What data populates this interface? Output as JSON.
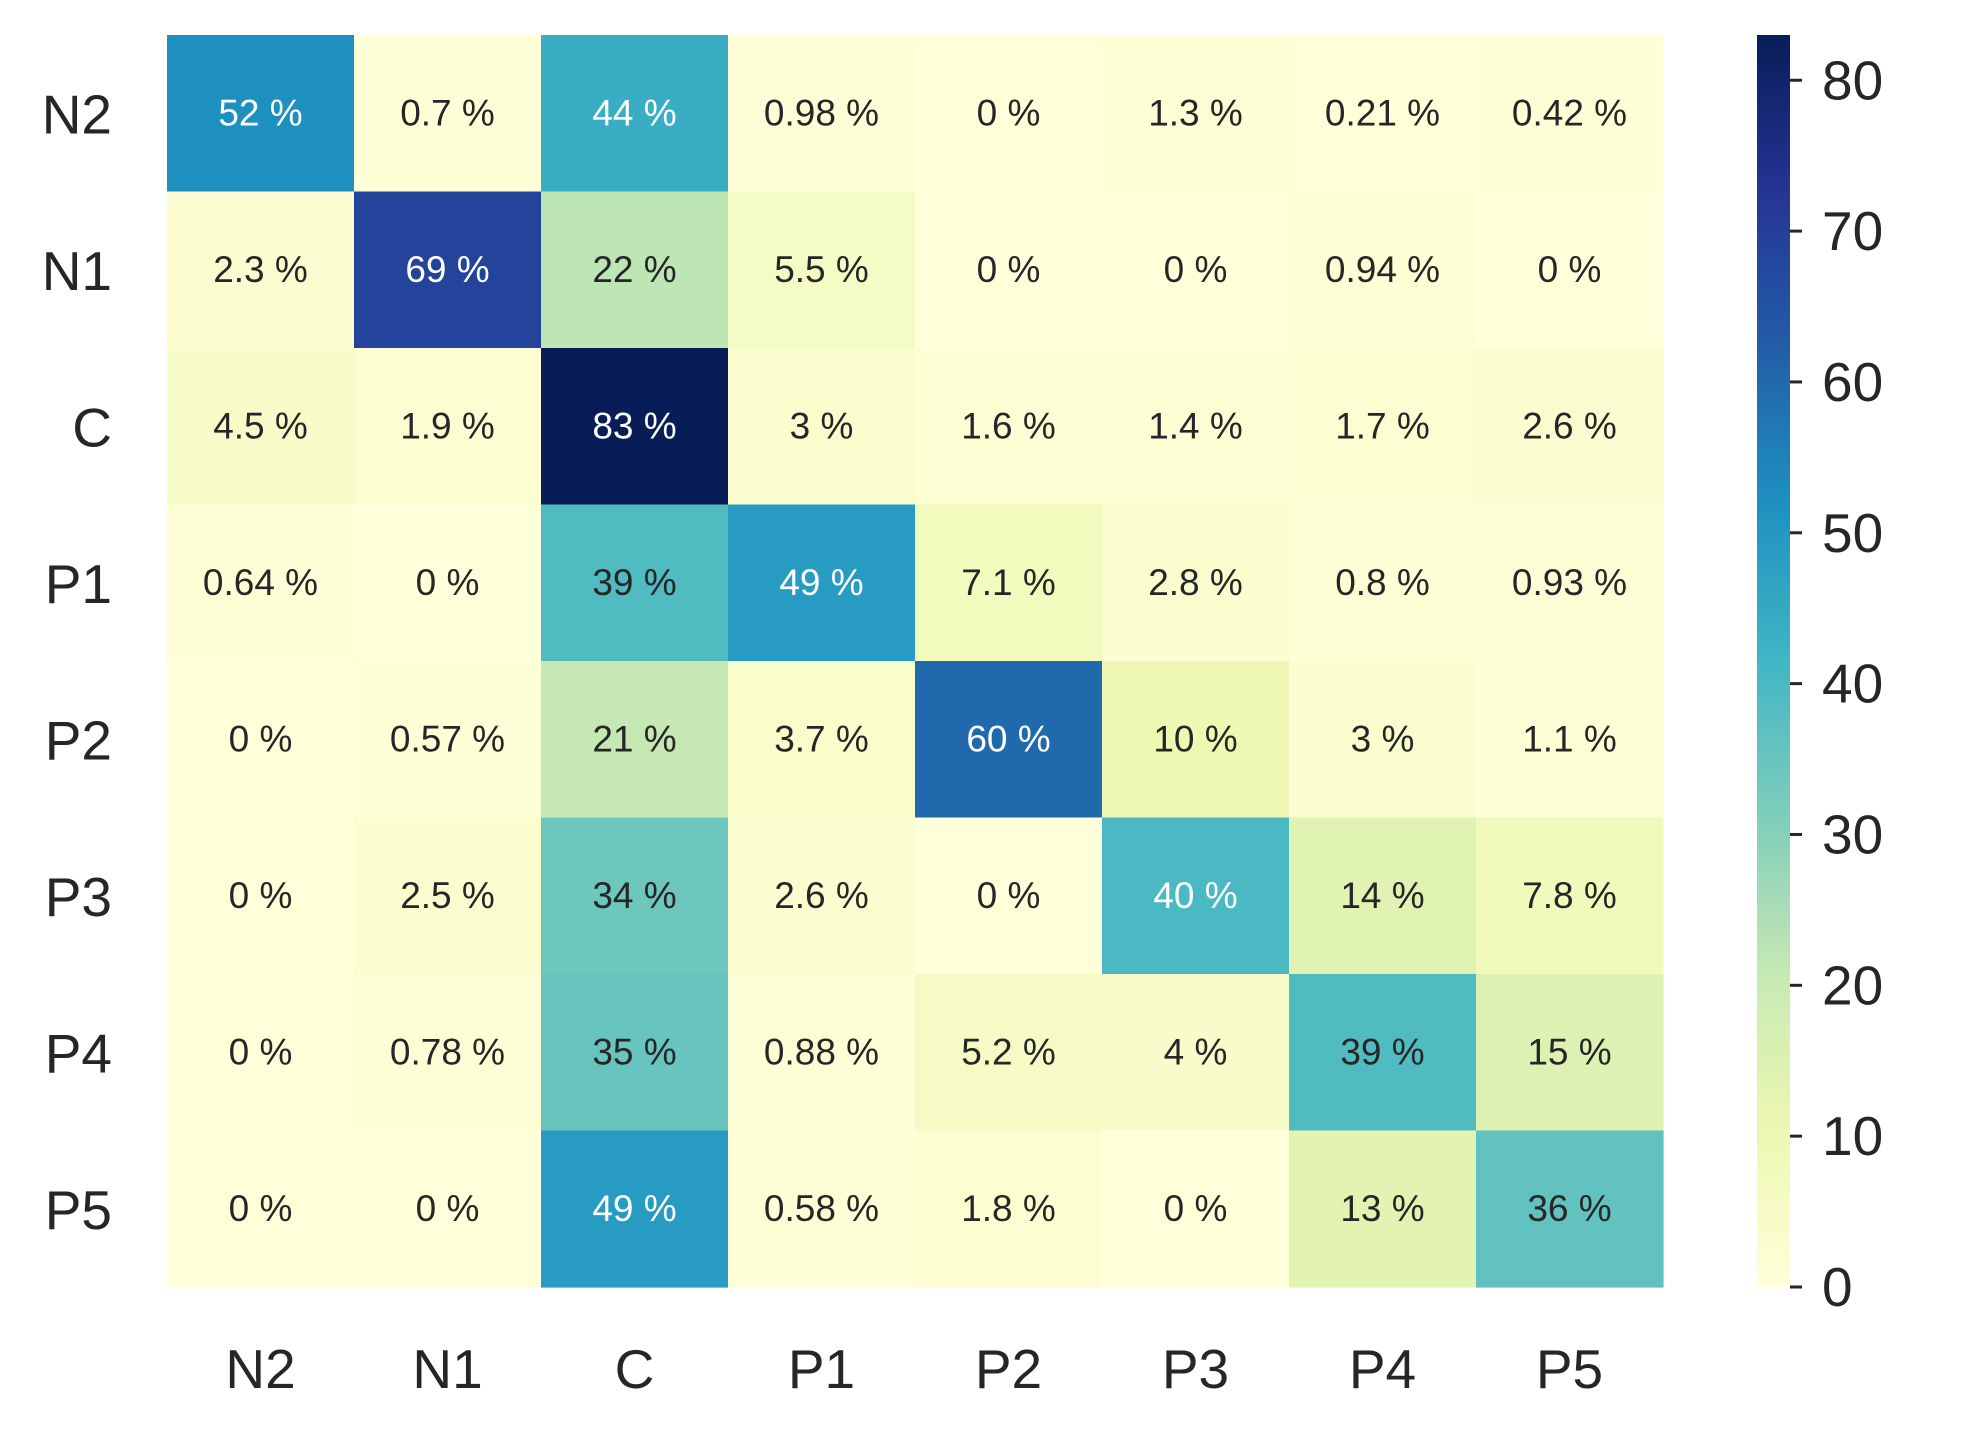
{
  "chart_data": {
    "type": "heatmap",
    "row_labels": [
      "N2",
      "N1",
      "C",
      "P1",
      "P2",
      "P3",
      "P4",
      "P5"
    ],
    "col_labels": [
      "N2",
      "N1",
      "C",
      "P1",
      "P2",
      "P3",
      "P4",
      "P5"
    ],
    "values": [
      [
        52,
        0.7,
        44,
        0.98,
        0,
        1.3,
        0.21,
        0.42
      ],
      [
        2.3,
        69,
        22,
        5.5,
        0,
        0,
        0.94,
        0
      ],
      [
        4.5,
        1.9,
        83,
        3,
        1.6,
        1.4,
        1.7,
        2.6
      ],
      [
        0.64,
        0,
        39,
        49,
        7.1,
        2.8,
        0.8,
        0.93
      ],
      [
        0,
        0.57,
        21,
        3.7,
        60,
        10,
        3,
        1.1
      ],
      [
        0,
        2.5,
        34,
        2.6,
        0,
        40,
        14,
        7.8
      ],
      [
        0,
        0.78,
        35,
        0.88,
        5.2,
        4,
        39,
        15
      ],
      [
        0,
        0,
        49,
        0.58,
        1.8,
        0,
        13,
        36
      ]
    ],
    "cell_labels": [
      [
        "52 %",
        "0.7 %",
        "44 %",
        "0.98 %",
        "0 %",
        "1.3 %",
        "0.21 %",
        "0.42 %"
      ],
      [
        "2.3 %",
        "69 %",
        "22 %",
        "5.5 %",
        "0 %",
        "0 %",
        "0.94 %",
        "0 %"
      ],
      [
        "4.5 %",
        "1.9 %",
        "83 %",
        "3 %",
        "1.6 %",
        "1.4 %",
        "1.7 %",
        "2.6 %"
      ],
      [
        "0.64 %",
        "0 %",
        "39 %",
        "49 %",
        "7.1 %",
        "2.8 %",
        "0.8 %",
        "0.93 %"
      ],
      [
        "0 %",
        "0.57 %",
        "21 %",
        "3.7 %",
        "60 %",
        "10 %",
        "3 %",
        "1.1 %"
      ],
      [
        "0 %",
        "2.5 %",
        "34 %",
        "2.6 %",
        "0 %",
        "40 %",
        "14 %",
        "7.8 %"
      ],
      [
        "0 %",
        "0.78 %",
        "35 %",
        "0.88 %",
        "5.2 %",
        "4 %",
        "39 %",
        "15 %"
      ],
      [
        "0 %",
        "0 %",
        "49 %",
        "0.58 %",
        "1.8 %",
        "0 %",
        "13 %",
        "36 %"
      ]
    ],
    "colorbar": {
      "colormap": "YlGnBu",
      "range": [
        0,
        83
      ],
      "ticks": [
        0,
        10,
        20,
        30,
        40,
        50,
        60,
        70,
        80
      ]
    },
    "title": "",
    "xlabel": "",
    "ylabel": "",
    "text_color_dark": "#262626",
    "text_color_light": "#ffffff"
  }
}
